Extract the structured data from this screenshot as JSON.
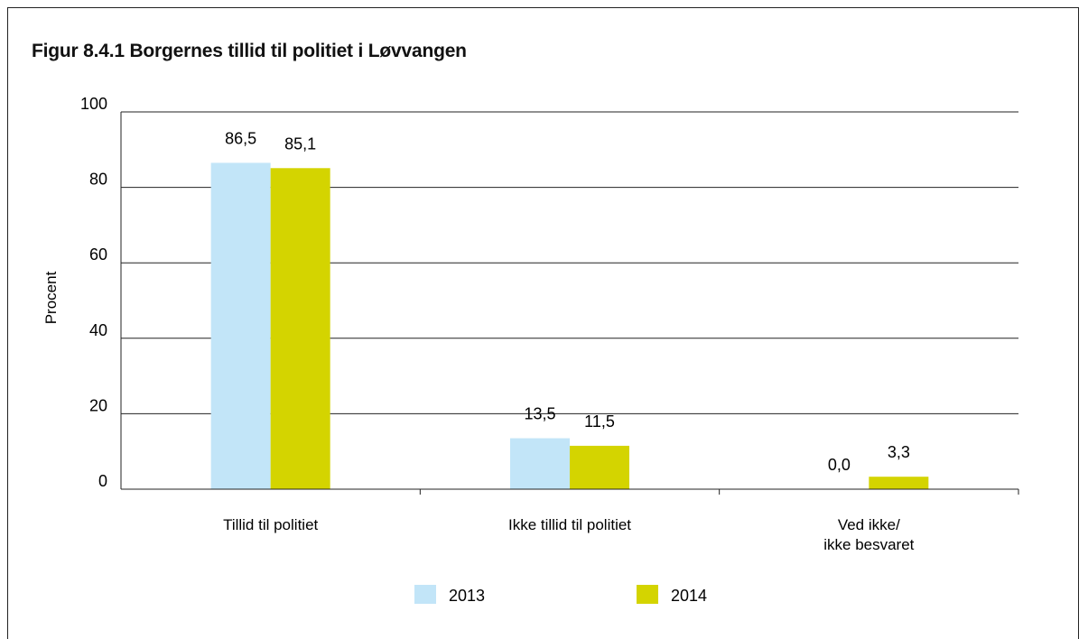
{
  "figure": {
    "title": "Figur 8.4.1 Borgernes tillid til politiet i Løvvangen"
  },
  "chart_data": {
    "type": "bar",
    "title": "Figur 8.4.1 Borgernes tillid til politiet i Løvvangen",
    "xlabel": "",
    "ylabel": "Procent",
    "ylim": [
      0,
      100
    ],
    "yticks": [
      "0",
      "20",
      "40",
      "60",
      "80",
      "100"
    ],
    "grid": true,
    "legend_position": "bottom",
    "categories": [
      [
        "Tillid til politiet"
      ],
      [
        "Ikke tillid til politiet"
      ],
      [
        "Ved ikke/",
        "ikke besvaret"
      ]
    ],
    "series": [
      {
        "name": "2013",
        "color": "#c2e5f8",
        "values": [
          86.5,
          13.5,
          0.0
        ],
        "labels": [
          "86,5",
          "13,5",
          "0,0"
        ]
      },
      {
        "name": "2014",
        "color": "#d4d400",
        "values": [
          85.1,
          11.5,
          3.3
        ],
        "labels": [
          "85,1",
          "11,5",
          "3,3"
        ]
      }
    ]
  }
}
